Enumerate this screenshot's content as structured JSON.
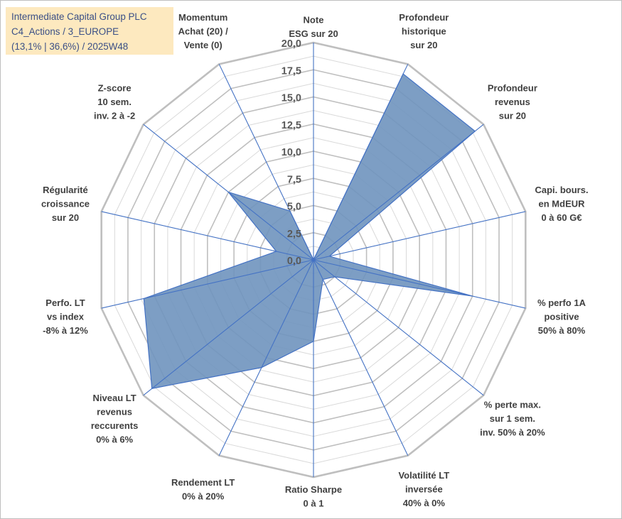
{
  "title_box": {
    "line1": "Intermediate Capital Group PLC",
    "line2": "C4_Actions / 3_EUROPE",
    "line3": "(13,1% | 36,6%) / 2025W48"
  },
  "chart_data": {
    "type": "radar",
    "title": "Intermediate Capital Group PLC",
    "rlim": [
      0,
      20
    ],
    "r_ticks": [
      "0,0",
      "2,5",
      "5,0",
      "7,5",
      "10,0",
      "12,5",
      "15,0",
      "17,5",
      "20,0"
    ],
    "grid": true,
    "colors": {
      "fill": "#6f93be",
      "stroke": "#4472c4",
      "axis": "#4472c4",
      "grid": "#bfbfbf",
      "grid_minor": "#d9d9d9"
    },
    "axes": [
      {
        "label": [
          "Note",
          "ESG sur 20"
        ],
        "value": 0.0
      },
      {
        "label": [
          "Profondeur",
          "historique",
          "sur 20"
        ],
        "value": 19.0
      },
      {
        "label": [
          "Profondeur",
          "revenus",
          "sur 20"
        ],
        "value": 19.0
      },
      {
        "label": [
          "Capi. bours.",
          "en MdEUR",
          "0 à 60 G€"
        ],
        "value": 1.5
      },
      {
        "label": [
          "% perfo 1A",
          "positive",
          "50% à 80%"
        ],
        "value": 15.0
      },
      {
        "label": [
          "% perte max.",
          "sur 1 sem.",
          "inv. 50% à 20%"
        ],
        "value": 2.5
      },
      {
        "label": [
          "Volatilité LT",
          "inversée",
          "40% à 0%"
        ],
        "value": 2.0
      },
      {
        "label": [
          "Ratio Sharpe",
          "0 à 1"
        ],
        "value": 7.5
      },
      {
        "label": [
          "Rendement LT",
          "0% à 20%"
        ],
        "value": 11.0
      },
      {
        "label": [
          "Niveau LT",
          "revenus",
          "reccurents",
          "0% à 6%"
        ],
        "value": 19.0
      },
      {
        "label": [
          "Perfo. LT",
          "vs index",
          "-8% à 12%"
        ],
        "value": 16.0
      },
      {
        "label": [
          "Régularité",
          "croissance",
          "sur 20"
        ],
        "value": 3.5
      },
      {
        "label": [
          "Z-score",
          "10 sem.",
          "inv. 2 à -2"
        ],
        "value": 10.0
      },
      {
        "label": [
          "Momentum",
          "Achat (20) /",
          "Vente (0)"
        ],
        "value": 5.0
      }
    ]
  }
}
